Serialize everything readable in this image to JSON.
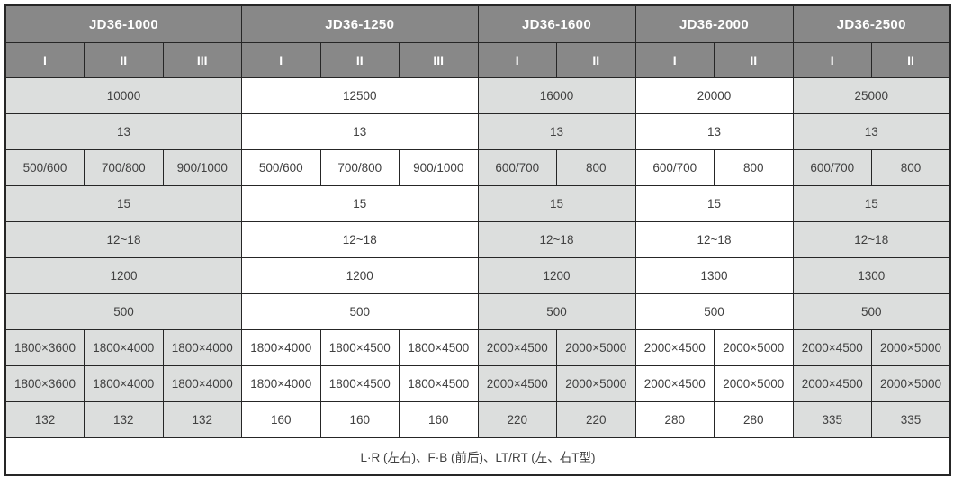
{
  "colors": {
    "header_bg": "#888888",
    "header_text": "#ffffff",
    "shaded_column_bg": "#dcdedd",
    "plain_column_bg": "#ffffff",
    "border": "#262626",
    "body_text": "#404040"
  },
  "table": {
    "groups": [
      {
        "label": "JD36-1000",
        "subcols": [
          "I",
          "II",
          "III"
        ],
        "shaded": true
      },
      {
        "label": "JD36-1250",
        "subcols": [
          "I",
          "II",
          "III"
        ],
        "shaded": false
      },
      {
        "label": "JD36-1600",
        "subcols": [
          "I",
          "II"
        ],
        "shaded": true
      },
      {
        "label": "JD36-2000",
        "subcols": [
          "I",
          "II"
        ],
        "shaded": false
      },
      {
        "label": "JD36-2500",
        "subcols": [
          "I",
          "II"
        ],
        "shaded": true
      }
    ],
    "rows": [
      {
        "span": "group",
        "values": [
          "10000",
          "12500",
          "16000",
          "20000",
          "25000"
        ]
      },
      {
        "span": "group",
        "values": [
          "13",
          "13",
          "13",
          "13",
          "13"
        ]
      },
      {
        "span": "column",
        "values": [
          "500/600",
          "700/800",
          "900/1000",
          "500/600",
          "700/800",
          "900/1000",
          "600/700",
          "800",
          "600/700",
          "800",
          "600/700",
          "800"
        ]
      },
      {
        "span": "group",
        "values": [
          "15",
          "15",
          "15",
          "15",
          "15"
        ]
      },
      {
        "span": "group",
        "values": [
          "12~18",
          "12~18",
          "12~18",
          "12~18",
          "12~18"
        ]
      },
      {
        "span": "group",
        "values": [
          "1200",
          "1200",
          "1200",
          "1300",
          "1300"
        ]
      },
      {
        "span": "group",
        "values": [
          "500",
          "500",
          "500",
          "500",
          "500"
        ]
      },
      {
        "span": "column",
        "values": [
          "1800×3600",
          "1800×4000",
          "1800×4000",
          "1800×4000",
          "1800×4500",
          "1800×4500",
          "2000×4500",
          "2000×5000",
          "2000×4500",
          "2000×5000",
          "2000×4500",
          "2000×5000"
        ]
      },
      {
        "span": "column",
        "values": [
          "1800×3600",
          "1800×4000",
          "1800×4000",
          "1800×4000",
          "1800×4500",
          "1800×4500",
          "2000×4500",
          "2000×5000",
          "2000×4500",
          "2000×5000",
          "2000×4500",
          "2000×5000"
        ]
      },
      {
        "span": "column",
        "values": [
          "132",
          "132",
          "132",
          "160",
          "160",
          "160",
          "220",
          "220",
          "280",
          "280",
          "335",
          "335"
        ]
      },
      {
        "span": "full",
        "values": [
          "L·R (左右)、F·B (前后)、LT/RT (左、右T型)"
        ]
      }
    ]
  }
}
